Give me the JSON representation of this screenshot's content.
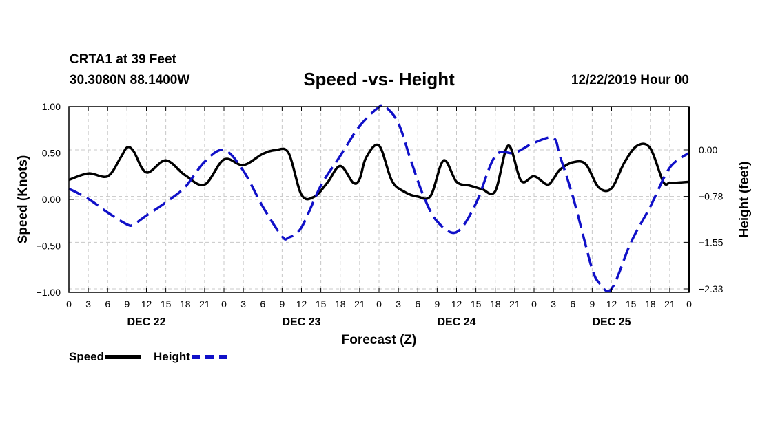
{
  "header": {
    "station": "CRTA1 at 39 Feet",
    "coords": "30.3080N 88.1400W",
    "title": "Speed -vs- Height",
    "datetime": "12/22/2019 Hour 00"
  },
  "chart_data": {
    "type": "line",
    "title": "Speed -vs- Height",
    "xlabel": "Forecast (Z)",
    "ylabel": "Speed (Knots)",
    "y2label": "Height (feet)",
    "x_range_hours": [
      0,
      96
    ],
    "x_tick_step_hours": 3,
    "x_tick_labels": [
      "0",
      "3",
      "6",
      "9",
      "12",
      "15",
      "18",
      "21",
      "0",
      "3",
      "6",
      "9",
      "12",
      "15",
      "18",
      "21",
      "0",
      "3",
      "6",
      "9",
      "12",
      "15",
      "18",
      "21",
      "0",
      "3",
      "6",
      "9",
      "12",
      "15",
      "18",
      "21",
      "0"
    ],
    "day_labels": [
      {
        "label": "DEC 22",
        "hour": 12
      },
      {
        "label": "DEC 23",
        "hour": 36
      },
      {
        "label": "DEC 24",
        "hour": 60
      },
      {
        "label": "DEC 25",
        "hour": 84
      }
    ],
    "ylim": [
      -1.0,
      1.0
    ],
    "y_ticks": [
      1.0,
      0.5,
      0.0,
      -0.5,
      -1.0
    ],
    "y_tick_labels": [
      "1.00",
      "0.50",
      "0.00",
      "−0.50",
      "−1.00"
    ],
    "y2_ticks": [
      0.0,
      -0.78,
      -1.55,
      -2.33
    ],
    "y2_tick_labels": [
      "0.00",
      "−0.78",
      "−1.55",
      "−2.33"
    ],
    "y2lim": [
      -2.4,
      0.8
    ],
    "grid": true,
    "legend_position": "bottom-left",
    "series": [
      {
        "name": "Speed",
        "axis": "left",
        "color": "#000000",
        "style": "solid",
        "x": [
          0,
          3,
          6,
          8,
          9,
          10,
          12,
          15,
          18,
          21,
          24,
          27,
          30,
          32,
          34,
          36,
          38,
          40,
          42,
          44,
          45,
          46,
          48,
          50,
          52,
          54,
          56,
          58,
          60,
          62,
          63,
          64,
          66,
          68,
          70,
          72,
          74,
          75,
          76,
          78,
          80,
          82,
          84,
          86,
          88,
          90,
          92,
          93,
          94,
          96
        ],
        "y": [
          0.21,
          0.28,
          0.25,
          0.45,
          0.56,
          0.52,
          0.29,
          0.42,
          0.26,
          0.16,
          0.43,
          0.37,
          0.49,
          0.53,
          0.5,
          0.05,
          0.03,
          0.18,
          0.36,
          0.18,
          0.22,
          0.45,
          0.58,
          0.2,
          0.08,
          0.03,
          0.04,
          0.42,
          0.19,
          0.15,
          0.13,
          0.11,
          0.09,
          0.58,
          0.2,
          0.25,
          0.16,
          0.22,
          0.32,
          0.4,
          0.38,
          0.13,
          0.12,
          0.4,
          0.58,
          0.55,
          0.19,
          0.18,
          0.18,
          0.19
        ]
      },
      {
        "name": "Height",
        "axis": "right",
        "color": "#1010c8",
        "style": "dashed",
        "x": [
          0,
          3,
          6,
          9,
          10,
          12,
          15,
          18,
          21,
          24,
          27,
          30,
          33,
          34,
          36,
          39,
          42,
          45,
          48,
          49,
          51,
          53,
          55,
          57,
          60,
          63,
          66,
          69,
          72,
          75,
          76,
          78,
          80,
          81,
          82,
          84,
          87,
          90,
          93,
          96
        ],
        "y": [
          -0.65,
          -0.82,
          -1.05,
          -1.25,
          -1.25,
          -1.1,
          -0.88,
          -0.62,
          -0.2,
          0.0,
          -0.35,
          -0.95,
          -1.45,
          -1.47,
          -1.3,
          -0.6,
          -0.1,
          0.4,
          0.72,
          0.72,
          0.45,
          -0.2,
          -0.8,
          -1.2,
          -1.38,
          -0.9,
          -0.1,
          -0.05,
          0.12,
          0.2,
          -0.1,
          -0.78,
          -1.6,
          -2.0,
          -2.22,
          -2.33,
          -1.55,
          -0.95,
          -0.3,
          -0.05
        ]
      }
    ]
  },
  "legend": {
    "speed_label": "Speed",
    "height_label": "Height"
  }
}
